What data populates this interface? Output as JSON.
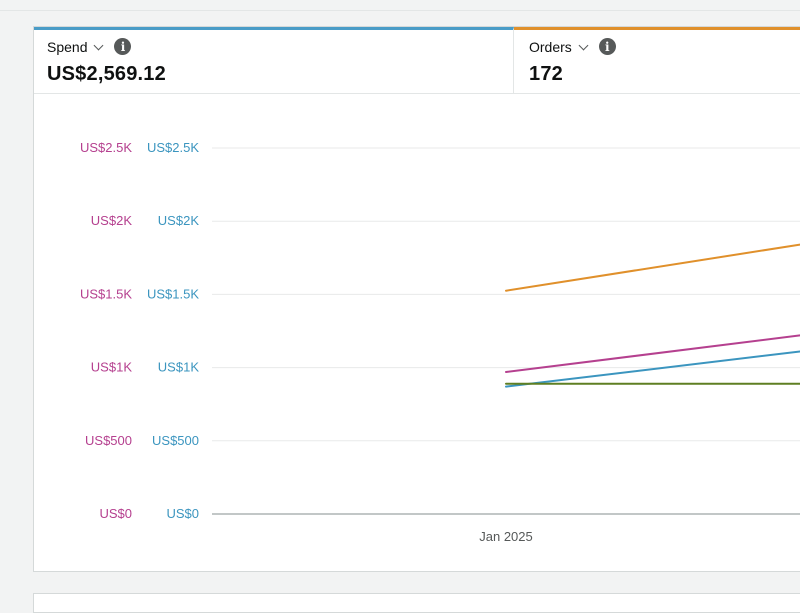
{
  "metrics": [
    {
      "name": "Spend",
      "value": "US$2,569.12",
      "color": "#4a9cc7"
    },
    {
      "name": "Orders",
      "value": "172",
      "color": "#e0902b"
    }
  ],
  "info_glyph": "i",
  "chart_data": {
    "type": "line",
    "x": [
      "Jan 2025"
    ],
    "x_domain": [
      0,
      2
    ],
    "x_tick": {
      "label": "Jan 2025",
      "value": 1
    },
    "y_axis_left": {
      "ticks": [
        "US$0",
        "US$500",
        "US$1K",
        "US$1.5K",
        "US$2K",
        "US$2.5K"
      ],
      "values": [
        0,
        500,
        1000,
        1500,
        2000,
        2500
      ],
      "color": "#b5408f"
    },
    "y_axis_right": {
      "ticks": [
        "US$0",
        "US$500",
        "US$1K",
        "US$1.5K",
        "US$2K",
        "US$2.5K"
      ],
      "values": [
        0,
        500,
        1000,
        1500,
        2000,
        2500
      ],
      "color": "#3b95bf"
    },
    "ylim": [
      0,
      2500
    ],
    "series": [
      {
        "name": "orange",
        "color": "#e0902b",
        "points": [
          [
            1,
            1525
          ],
          [
            2,
            1840
          ]
        ]
      },
      {
        "name": "magenta",
        "color": "#b5408f",
        "points": [
          [
            1,
            970
          ],
          [
            2,
            1220
          ]
        ]
      },
      {
        "name": "blue",
        "color": "#3b95bf",
        "points": [
          [
            1,
            870
          ],
          [
            2,
            1110
          ]
        ]
      },
      {
        "name": "olive",
        "color": "#5f7f22",
        "points": [
          [
            1,
            890
          ],
          [
            2,
            890
          ]
        ]
      }
    ]
  }
}
